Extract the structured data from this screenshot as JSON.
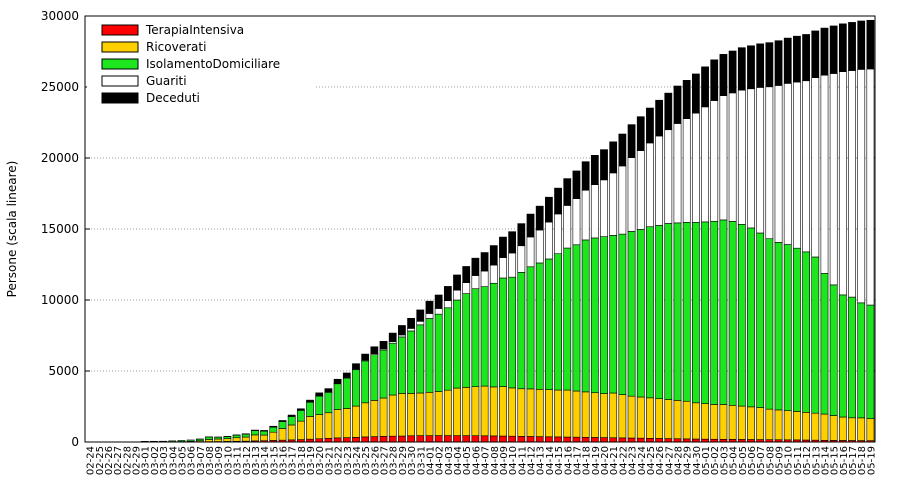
{
  "chart_data": {
    "type": "stacked-bar",
    "y_label": "Persone (scala lineare)",
    "categories": [
      "02-24",
      "02-25",
      "02-26",
      "02-27",
      "02-28",
      "02-29",
      "03-01",
      "03-02",
      "03-03",
      "03-04",
      "03-05",
      "03-06",
      "03-07",
      "03-08",
      "03-09",
      "03-10",
      "03-11",
      "03-12",
      "03-13",
      "03-14",
      "03-15",
      "03-16",
      "03-17",
      "03-18",
      "03-19",
      "03-20",
      "03-21",
      "03-22",
      "03-23",
      "03-24",
      "03-25",
      "03-26",
      "03-27",
      "03-28",
      "03-29",
      "03-30",
      "03-31",
      "04-01",
      "04-02",
      "04-03",
      "04-04",
      "04-05",
      "04-06",
      "04-07",
      "04-08",
      "04-09",
      "04-10",
      "04-11",
      "04-12",
      "04-13",
      "04-14",
      "04-15",
      "04-16",
      "04-17",
      "04-18",
      "04-19",
      "04-20",
      "04-21",
      "04-22",
      "04-23",
      "04-24",
      "04-25",
      "04-26",
      "04-27",
      "04-28",
      "04-29",
      "04-30",
      "05-01",
      "05-02",
      "05-03",
      "05-04",
      "05-05",
      "05-06",
      "05-07",
      "05-08",
      "05-09",
      "05-10",
      "05-11",
      "05-12",
      "05-13",
      "05-14",
      "05-15",
      "05-16",
      "05-17",
      "05-18",
      "05-19"
    ],
    "series": [
      {
        "name": "TerapiaIntensiva",
        "color": "#ff0000",
        "values": [
          0,
          0,
          0,
          0,
          0,
          0,
          0,
          0,
          1,
          2,
          4,
          8,
          15,
          25,
          30,
          40,
          50,
          60,
          80,
          90,
          110,
          130,
          150,
          170,
          200,
          230,
          260,
          290,
          310,
          330,
          360,
          380,
          400,
          410,
          420,
          440,
          450,
          450,
          453,
          452,
          450,
          448,
          445,
          440,
          430,
          420,
          410,
          400,
          390,
          380,
          370,
          360,
          350,
          340,
          330,
          320,
          310,
          300,
          290,
          280,
          270,
          260,
          250,
          240,
          230,
          220,
          210,
          200,
          195,
          190,
          185,
          180,
          175,
          170,
          165,
          160,
          155,
          150,
          140,
          130,
          120,
          115,
          110,
          105,
          100,
          95
        ]
      },
      {
        "name": "Ricoverati",
        "color": "#ffd000",
        "values": [
          0,
          2,
          2,
          2,
          2,
          5,
          10,
          12,
          14,
          20,
          30,
          45,
          70,
          150,
          180,
          200,
          250,
          290,
          420,
          400,
          580,
          820,
          1050,
          1300,
          1600,
          1700,
          1800,
          2000,
          2050,
          2200,
          2400,
          2550,
          2700,
          2900,
          3000,
          2980,
          3000,
          3050,
          3100,
          3200,
          3350,
          3400,
          3450,
          3500,
          3450,
          3480,
          3400,
          3350,
          3350,
          3330,
          3320,
          3300,
          3310,
          3250,
          3200,
          3150,
          3100,
          3150,
          3050,
          2950,
          2900,
          2850,
          2800,
          2750,
          2700,
          2650,
          2550,
          2500,
          2450,
          2450,
          2400,
          2350,
          2300,
          2250,
          2150,
          2100,
          2050,
          2000,
          1950,
          1900,
          1850,
          1750,
          1650,
          1600,
          1600,
          1550
        ]
      },
      {
        "name": "IsolamentoDomiciliare",
        "color": "#1ee61e",
        "values": [
          0,
          1,
          1,
          1,
          9,
          6,
          39,
          39,
          41,
          60,
          74,
          90,
          120,
          180,
          130,
          145,
          180,
          200,
          300,
          280,
          360,
          490,
          600,
          760,
          1000,
          1300,
          1440,
          1810,
          2140,
          2560,
          2950,
          3220,
          3380,
          3650,
          3980,
          4400,
          4800,
          5200,
          5450,
          5800,
          6200,
          6600,
          6900,
          7000,
          7300,
          7650,
          7800,
          8200,
          8600,
          8900,
          9200,
          9600,
          10000,
          10300,
          10700,
          10900,
          11050,
          11100,
          11300,
          11600,
          11800,
          12050,
          12200,
          12400,
          12500,
          12600,
          12700,
          12800,
          12900,
          13000,
          12950,
          12800,
          12600,
          12300,
          12000,
          11800,
          11700,
          11500,
          11300,
          11000,
          9900,
          9200,
          8600,
          8500,
          8100,
          8000
        ]
      },
      {
        "name": "Guariti",
        "color": "#ffffff",
        "values": [
          0,
          0,
          0,
          0,
          0,
          0,
          0,
          0,
          0,
          0,
          0,
          0,
          0,
          0,
          0,
          0,
          0,
          5,
          5,
          5,
          5,
          6,
          7,
          10,
          15,
          20,
          30,
          40,
          45,
          55,
          60,
          70,
          80,
          110,
          140,
          180,
          250,
          350,
          400,
          500,
          690,
          770,
          930,
          1100,
          1280,
          1440,
          1700,
          1870,
          2100,
          2320,
          2600,
          2800,
          3000,
          3250,
          3500,
          3750,
          4000,
          4400,
          4800,
          5200,
          5550,
          5900,
          6300,
          6600,
          7000,
          7300,
          7700,
          8100,
          8500,
          8750,
          9050,
          9450,
          9800,
          10250,
          10700,
          11050,
          11350,
          11700,
          12050,
          12630,
          13960,
          14885,
          15720,
          15955,
          16440,
          16625
        ]
      },
      {
        "name": "Deceduti",
        "color": "#000000",
        "values": [
          0,
          0,
          0,
          0,
          0,
          0,
          0,
          0,
          0,
          0,
          0,
          0,
          2,
          5,
          10,
          16,
          21,
          25,
          35,
          40,
          56,
          70,
          90,
          101,
          135,
          211,
          230,
          280,
          316,
          370,
          423,
          488,
          532,
          601,
          666,
          712,
          801,
          868,
          950,
          1006,
          1075,
          1144,
          1222,
          1303,
          1374,
          1442,
          1502,
          1560,
          1612,
          1680,
          1750,
          1820,
          1890,
          1950,
          2010,
          2070,
          2130,
          2190,
          2250,
          2320,
          2390,
          2460,
          2520,
          2580,
          2640,
          2700,
          2760,
          2820,
          2870,
          2910,
          2950,
          2990,
          3030,
          3070,
          3110,
          3150,
          3190,
          3230,
          3260,
          3290,
          3320,
          3350,
          3370,
          3390,
          3410,
          3430
        ]
      }
    ],
    "ylim": [
      0,
      30000
    ],
    "yticks": [
      0,
      5000,
      10000,
      15000,
      20000,
      25000,
      30000
    ],
    "grid": true,
    "legend": "top-left"
  }
}
